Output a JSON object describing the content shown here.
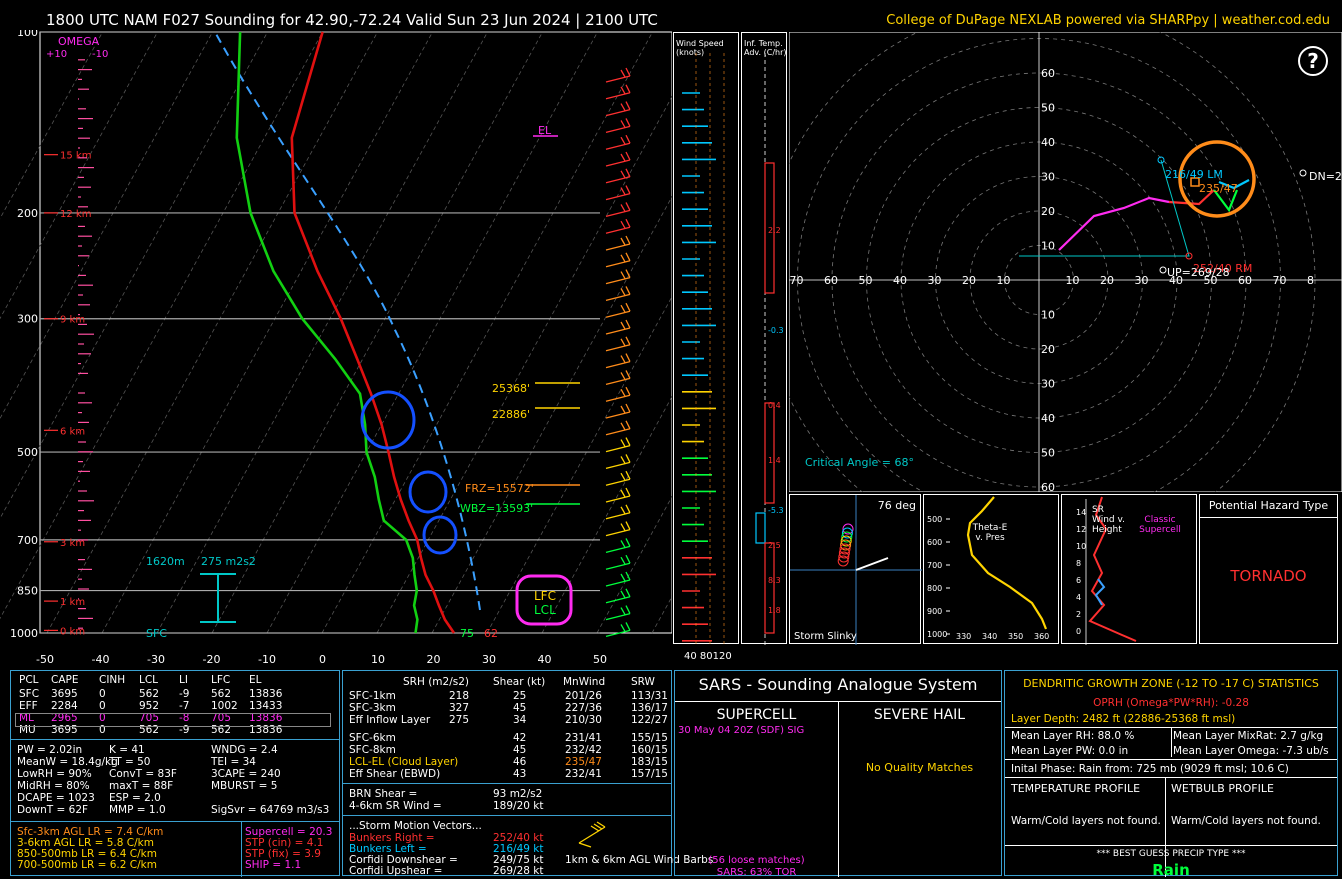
{
  "header": {
    "title": "1800 UTC NAM F027 Sounding for 42.90,-72.24 Valid  Sun 23 Jun 2024 | 2100 UTC",
    "credit": "College of DuPage NEXLAB powered via SHARPpy | weather.cod.edu"
  },
  "skewt": {
    "pressure_labels": [
      "100",
      "200",
      "300",
      "500",
      "700",
      "850",
      "1000"
    ],
    "temp_labels": [
      "-50",
      "-40",
      "-30",
      "-20",
      "-10",
      "0",
      "10",
      "20",
      "30",
      "40",
      "50"
    ],
    "height_labels": [
      "15 km",
      "12 km",
      "9 km",
      "6 km",
      "3 km",
      "1 km",
      "0 km"
    ],
    "omega_label": "OMEGA",
    "omega_ticks": [
      "+10",
      "-10"
    ],
    "el_label": "EL",
    "lfc_label": "LFC",
    "lcl_label": "LCL",
    "level_labels": [
      "25368'",
      "22886'",
      "FRZ=15572'",
      "WBZ=13593'"
    ],
    "annot_1620": "1620m",
    "annot_srh": "275 m2s2",
    "sfc_label": "SFC",
    "sfc_temp": "75",
    "sfc_dew": "62"
  },
  "wind_panel": {
    "title": "Wind Speed (knots)",
    "ticks": [
      "40",
      "80",
      "120"
    ]
  },
  "inftemp_panel": {
    "title": "Inf. Temp. Adv. (C/hr)",
    "values": [
      "2.2",
      "-0.3",
      "0.4",
      "1.4",
      "-5.3",
      "2.5",
      "8.3",
      "1.8"
    ]
  },
  "hodograph": {
    "rings": [
      "10",
      "20",
      "30",
      "40",
      "50",
      "60"
    ],
    "x_labels": [
      "70",
      "60",
      "50",
      "40",
      "30",
      "20",
      "10",
      "10",
      "20",
      "30",
      "40",
      "50",
      "60",
      "70",
      "8"
    ],
    "lm_label": "216/49 LM",
    "rm_label": "252/40 RM",
    "mean_label": "235/47",
    "up_label": "UP=269/28",
    "dn_label": "DN=2",
    "critical_angle": "Critical Angle = 68°",
    "help_icon": "question-circle-icon"
  },
  "slinky": {
    "angle": "76 deg",
    "title": "Storm Slinky"
  },
  "thetae": {
    "title": "Theta-E v. Pres",
    "p_labels": [
      "500",
      "600",
      "700",
      "800",
      "900",
      "1000"
    ],
    "x_labels": [
      "330",
      "340",
      "350",
      "360"
    ]
  },
  "srwind": {
    "title": "SR Wind v. Height",
    "labels": [
      "14",
      "12",
      "10",
      "8",
      "6",
      "4",
      "2",
      "0"
    ],
    "class_label": "Classic Supercell"
  },
  "hazard": {
    "title": "Potential Hazard Type",
    "value": "TORNADO"
  },
  "parcels": {
    "headers": [
      "PCL",
      "CAPE",
      "CINH",
      "LCL",
      "LI",
      "LFC",
      "EL"
    ],
    "rows": [
      [
        "SFC",
        "3695",
        "0",
        "562",
        "-9",
        "562",
        "13836"
      ],
      [
        "EFF",
        "2284",
        "0",
        "952",
        "-7",
        "1002",
        "13433"
      ],
      [
        "ML",
        "2965",
        "0",
        "705",
        "-8",
        "705",
        "13836"
      ],
      [
        "MU",
        "3695",
        "0",
        "562",
        "-9",
        "562",
        "13836"
      ]
    ]
  },
  "indices": [
    [
      "PW = 2.02in",
      "K = 41",
      "WNDG = 2.4"
    ],
    [
      "MeanW = 18.4g/kg",
      "TT = 50",
      "TEI = 34"
    ],
    [
      "LowRH = 90%",
      "ConvT = 83F",
      "3CAPE = 240"
    ],
    [
      "MidRH = 80%",
      "maxT = 88F",
      "MBURST = 5"
    ],
    [
      "DCAPE = 1023",
      "ESP = 2.0",
      ""
    ],
    [
      "DownT = 62F",
      "MMP = 1.0",
      "SigSvr = 64769 m3/s3"
    ]
  ],
  "lapse": [
    "Sfc-3km AGL LR = 7.4 C/km",
    "3-6km AGL LR = 5.8 C/km",
    "850-500mb LR = 6.4 C/km",
    "700-500mb LR = 6.2 C/km"
  ],
  "composite": [
    "Supercell = 20.3",
    "STP (cin) = 4.1",
    "STP (fix) = 3.9",
    "SHIP = 1.1"
  ],
  "kinematics": {
    "headers": [
      "SRH (m2/s2)",
      "Shear (kt)",
      "MnWind",
      "SRW"
    ],
    "rows": [
      [
        "SFC-1km",
        "218",
        "25",
        "201/26",
        "113/31"
      ],
      [
        "SFC-3km",
        "327",
        "45",
        "227/36",
        "136/17"
      ],
      [
        "Eff Inflow Layer",
        "275",
        "34",
        "210/30",
        "122/27"
      ],
      [
        "SFC-6km",
        "",
        "42",
        "231/41",
        "155/15"
      ],
      [
        "SFC-8km",
        "",
        "45",
        "232/42",
        "160/15"
      ],
      [
        "LCL-EL (Cloud Layer)",
        "",
        "46",
        "235/47",
        "183/15"
      ],
      [
        "Eff Shear (EBWD)",
        "",
        "43",
        "232/41",
        "157/15"
      ]
    ],
    "brn_shear": [
      "BRN Shear =",
      "93 m2/s2"
    ],
    "sr_wind": [
      "4-6km SR Wind =",
      "189/20 kt"
    ],
    "motion_title": "...Storm Motion Vectors...",
    "motions": [
      [
        "Bunkers Right =",
        "252/40 kt"
      ],
      [
        "Bunkers Left =",
        "216/49 kt"
      ],
      [
        "Corfidi Downshear =",
        "249/75 kt"
      ],
      [
        "Corfidi Upshear =",
        "269/28 kt"
      ]
    ],
    "barb_label": "1km & 6km AGL Wind Barbs"
  },
  "sars": {
    "title": "SARS - Sounding Analogue System",
    "supercell": "SUPERCELL",
    "hail": "SEVERE HAIL",
    "match": "30 May 04 20Z (SDF)  SIG",
    "no_match": "No Quality Matches",
    "loose": "(56 loose matches)",
    "tor": "SARS: 63% TOR"
  },
  "dgz": {
    "title": "DENDRITIC GROWTH ZONE (-12 TO -17 C) STATISTICS",
    "oprh": "OPRH (Omega*PW*RH): -0.28",
    "depth": "Layer Depth: 2482 ft (22886-25368 ft msl)",
    "rh": "Mean Layer RH: 88.0 %",
    "mixrat": "Mean Layer MixRat: 2.7 g/kg",
    "pw": "Mean Layer PW: 0.0 in",
    "omega": "Mean Layer Omega: -7.3 ub/s",
    "phase": "Inital Phase: Rain from: 725 mb (9029 ft msl; 10.6 C)",
    "temp_profile": "TEMPERATURE PROFILE",
    "wb_profile": "WETBULB PROFILE",
    "temp_msg": "Warm/Cold layers not found.",
    "wb_msg": "Warm/Cold layers not found.",
    "precip_title": "*** BEST GUESS PRECIP TYPE ***",
    "precip": "Rain"
  },
  "chart_data": {
    "type": "line",
    "title": "1800 UTC NAM F027 Sounding for 42.90,-72.24 Valid  Sun 23 Jun 2024 | 2100 UTC",
    "xlabel": "",
    "ylabel": "",
    "series": [
      {
        "name": "",
        "pressure": [
          1000,
          950,
          900,
          850,
          800,
          750,
          700,
          650,
          600,
          550,
          500,
          450,
          400,
          350,
          300,
          250,
          200,
          150,
          100
        ],
        "values": [
          24,
          21,
          18.5,
          16,
          13,
          10.5,
          8,
          4.5,
          1,
          -2.5,
          -6,
          -10,
          -15,
          -21,
          -28,
          -37,
          -47,
          -55,
          -60
        ]
      },
      {
        "name": "",
        "pressure": [
          1000,
          950,
          900,
          850,
          800,
          750,
          700,
          650,
          600,
          550,
          500,
          450,
          400,
          350,
          300,
          250,
          200,
          150,
          100
        ],
        "values": [
          17,
          16,
          14,
          13,
          11,
          9,
          6,
          0,
          -3,
          -6,
          -10,
          -13,
          -17,
          -25,
          -35,
          -45,
          -55,
          -65,
          -75
        ]
      }
    ],
    "xlim": [
      -50,
      50
    ],
    "ylim": [
      1000,
      100
    ]
  }
}
